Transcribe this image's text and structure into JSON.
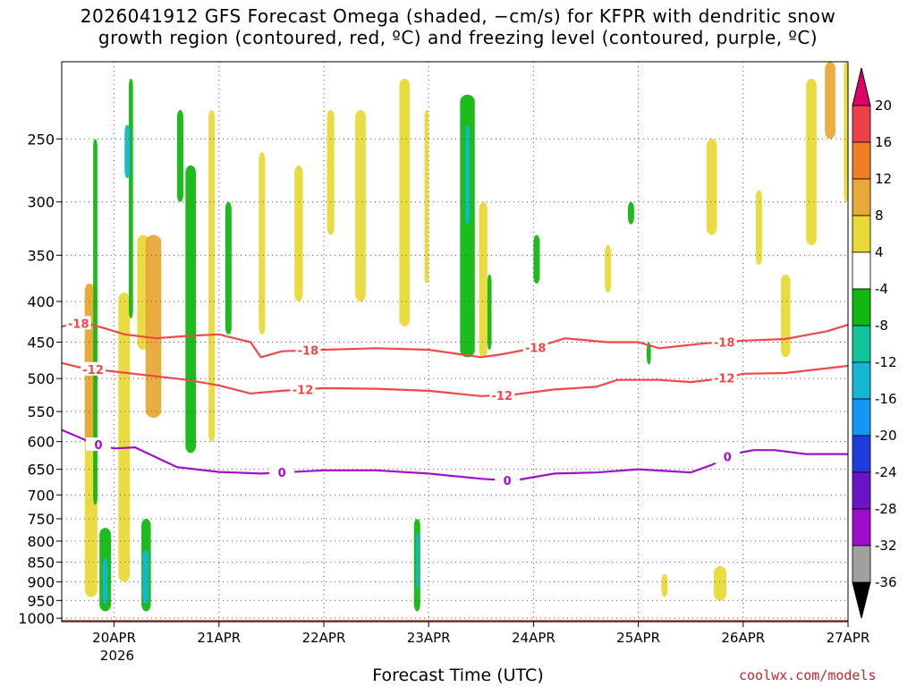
{
  "chart_data": {
    "type": "time-height cross section",
    "title_line1": "2026041912 GFS Forecast Omega (shaded, −cm/s) for KFPR with dendritic snow",
    "title_line2": "growth region (contoured, red, ºC) and freezing level (contoured, purple, ºC)",
    "xlabel": "Forecast Time (UTC)",
    "year_label": "2026",
    "credit": "coolwx.com/models",
    "x_ticks": [
      "20APR",
      "21APR",
      "22APR",
      "23APR",
      "24APR",
      "25APR",
      "26APR",
      "27APR"
    ],
    "x_range_days": [
      19.5,
      27.0
    ],
    "y_axis": "pressure (hPa)",
    "y_ticks": [
      250,
      300,
      350,
      400,
      450,
      500,
      550,
      600,
      650,
      700,
      750,
      800,
      850,
      900,
      950,
      1000
    ],
    "y_range": [
      200,
      1010
    ],
    "colorbar_levels": [
      20,
      16,
      12,
      8,
      4,
      -4,
      -8,
      -12,
      -16,
      -20,
      -24,
      -28,
      -32,
      -36
    ],
    "colorbar_colors": [
      "#e0006a",
      "#ee4048",
      "#f07e26",
      "#e9a937",
      "#e9d936",
      "#ffffff",
      "#10b810",
      "#0fc49a",
      "#14b6d2",
      "#1496f4",
      "#1e3cdc",
      "#6a14c8",
      "#a00ccc",
      "#a0a0a0",
      "#000000"
    ],
    "contours": [
      {
        "name": "-18",
        "color": "#f04848",
        "points": [
          [
            19.5,
            430
          ],
          [
            19.7,
            425
          ],
          [
            19.9,
            432
          ],
          [
            20.1,
            440
          ],
          [
            20.4,
            445
          ],
          [
            20.7,
            442
          ],
          [
            21.0,
            440
          ],
          [
            21.3,
            450
          ],
          [
            21.4,
            470
          ],
          [
            21.6,
            462
          ],
          [
            22.0,
            460
          ],
          [
            22.5,
            458
          ],
          [
            23.0,
            460
          ],
          [
            23.5,
            470
          ],
          [
            23.7,
            466
          ],
          [
            24.0,
            458
          ],
          [
            24.3,
            445
          ],
          [
            24.7,
            450
          ],
          [
            25.0,
            450
          ],
          [
            25.2,
            458
          ],
          [
            25.6,
            452
          ],
          [
            26.0,
            448
          ],
          [
            26.4,
            446
          ],
          [
            26.8,
            436
          ],
          [
            27.0,
            428
          ]
        ],
        "labels": [
          [
            19.66,
            "-18"
          ],
          [
            21.85,
            "-18"
          ],
          [
            24.02,
            "-18"
          ],
          [
            25.82,
            "-18"
          ]
        ]
      },
      {
        "name": "-12",
        "color": "#f04848",
        "points": [
          [
            19.5,
            478
          ],
          [
            19.7,
            485
          ],
          [
            20.0,
            490
          ],
          [
            20.3,
            495
          ],
          [
            20.7,
            502
          ],
          [
            21.0,
            510
          ],
          [
            21.3,
            522
          ],
          [
            21.6,
            518
          ],
          [
            22.0,
            514
          ],
          [
            22.5,
            515
          ],
          [
            23.0,
            518
          ],
          [
            23.5,
            526
          ],
          [
            23.8,
            524
          ],
          [
            24.2,
            516
          ],
          [
            24.6,
            512
          ],
          [
            24.8,
            502
          ],
          [
            25.2,
            502
          ],
          [
            25.5,
            505
          ],
          [
            25.8,
            500
          ],
          [
            26.0,
            493
          ],
          [
            26.4,
            492
          ],
          [
            26.7,
            487
          ],
          [
            27.0,
            482
          ]
        ],
        "labels": [
          [
            19.8,
            "-12"
          ],
          [
            21.8,
            "-12"
          ],
          [
            23.7,
            "-12"
          ],
          [
            25.82,
            "-12"
          ]
        ]
      },
      {
        "name": "0",
        "color": "#a010c8",
        "points": [
          [
            19.5,
            580
          ],
          [
            19.8,
            603
          ],
          [
            20.0,
            612
          ],
          [
            20.2,
            610
          ],
          [
            20.4,
            628
          ],
          [
            20.6,
            646
          ],
          [
            21.0,
            655
          ],
          [
            21.4,
            658
          ],
          [
            22.0,
            652
          ],
          [
            22.5,
            652
          ],
          [
            23.0,
            658
          ],
          [
            23.5,
            668
          ],
          [
            23.8,
            672
          ],
          [
            24.2,
            658
          ],
          [
            24.6,
            656
          ],
          [
            25.0,
            650
          ],
          [
            25.5,
            656
          ],
          [
            25.7,
            642
          ],
          [
            25.9,
            622
          ],
          [
            26.1,
            615
          ],
          [
            26.3,
            615
          ],
          [
            26.6,
            622
          ],
          [
            27.0,
            622
          ]
        ],
        "labels": [
          [
            19.85,
            "0"
          ],
          [
            21.6,
            "0"
          ],
          [
            23.75,
            "0"
          ],
          [
            25.85,
            "0"
          ]
        ]
      }
    ],
    "omega_patches": [
      {
        "x": [
          19.72,
          19.84
        ],
        "p": [
          380,
          940
        ],
        "v": 5
      },
      {
        "x": [
          19.72,
          19.8
        ],
        "p": [
          380,
          600
        ],
        "v": 8
      },
      {
        "x": [
          19.8,
          19.84
        ],
        "p": [
          250,
          720
        ],
        "v": -5
      },
      {
        "x": [
          19.86,
          19.97
        ],
        "p": [
          770,
          980
        ],
        "v": -5
      },
      {
        "x": [
          19.89,
          19.94
        ],
        "p": [
          840,
          960
        ],
        "v": -13
      },
      {
        "x": [
          20.04,
          20.15
        ],
        "p": [
          390,
          900
        ],
        "v": 5
      },
      {
        "x": [
          20.14,
          20.18
        ],
        "p": [
          210,
          420
        ],
        "v": -5
      },
      {
        "x": [
          20.1,
          20.15
        ],
        "p": [
          240,
          280
        ],
        "v": -12
      },
      {
        "x": [
          20.22,
          20.33
        ],
        "p": [
          330,
          460
        ],
        "v": 5
      },
      {
        "x": [
          20.3,
          20.45
        ],
        "p": [
          330,
          560
        ],
        "v": 10
      },
      {
        "x": [
          20.26,
          20.35
        ],
        "p": [
          750,
          980
        ],
        "v": -5
      },
      {
        "x": [
          20.27,
          20.33
        ],
        "p": [
          820,
          960
        ],
        "v": -12
      },
      {
        "x": [
          20.68,
          20.78
        ],
        "p": [
          270,
          620
        ],
        "v": -5
      },
      {
        "x": [
          20.6,
          20.66
        ],
        "p": [
          230,
          300
        ],
        "v": -5
      },
      {
        "x": [
          20.9,
          20.96
        ],
        "p": [
          230,
          600
        ],
        "v": 5
      },
      {
        "x": [
          21.06,
          21.12
        ],
        "p": [
          300,
          440
        ],
        "v": -5
      },
      {
        "x": [
          21.38,
          21.44
        ],
        "p": [
          260,
          440
        ],
        "v": 5
      },
      {
        "x": [
          21.72,
          21.8
        ],
        "p": [
          270,
          400
        ],
        "v": 5
      },
      {
        "x": [
          22.03,
          22.1
        ],
        "p": [
          230,
          330
        ],
        "v": 5
      },
      {
        "x": [
          22.3,
          22.4
        ],
        "p": [
          230,
          400
        ],
        "v": 5
      },
      {
        "x": [
          22.72,
          22.82
        ],
        "p": [
          210,
          430
        ],
        "v": 5
      },
      {
        "x": [
          22.86,
          22.92
        ],
        "p": [
          750,
          980
        ],
        "v": -5
      },
      {
        "x": [
          22.88,
          22.91
        ],
        "p": [
          780,
          920
        ],
        "v": -12
      },
      {
        "x": [
          22.96,
          23.0
        ],
        "p": [
          230,
          380
        ],
        "v": 5
      },
      {
        "x": [
          23.3,
          23.44
        ],
        "p": [
          220,
          470
        ],
        "v": -5
      },
      {
        "x": [
          23.35,
          23.39
        ],
        "p": [
          240,
          320
        ],
        "v": -12
      },
      {
        "x": [
          23.48,
          23.56
        ],
        "p": [
          300,
          470
        ],
        "v": 5
      },
      {
        "x": [
          23.56,
          23.6
        ],
        "p": [
          370,
          460
        ],
        "v": -5
      },
      {
        "x": [
          24.0,
          24.06
        ],
        "p": [
          330,
          380
        ],
        "v": -5
      },
      {
        "x": [
          24.68,
          24.74
        ],
        "p": [
          340,
          390
        ],
        "v": 5
      },
      {
        "x": [
          24.9,
          24.96
        ],
        "p": [
          300,
          320
        ],
        "v": -5
      },
      {
        "x": [
          25.08,
          25.12
        ],
        "p": [
          450,
          480
        ],
        "v": -5
      },
      {
        "x": [
          25.22,
          25.28
        ],
        "p": [
          880,
          940
        ],
        "v": 5
      },
      {
        "x": [
          25.65,
          25.75
        ],
        "p": [
          250,
          330
        ],
        "v": 5
      },
      {
        "x": [
          25.72,
          25.84
        ],
        "p": [
          860,
          950
        ],
        "v": 5
      },
      {
        "x": [
          26.12,
          26.18
        ],
        "p": [
          290,
          360
        ],
        "v": 5
      },
      {
        "x": [
          26.36,
          26.45
        ],
        "p": [
          370,
          470
        ],
        "v": 5
      },
      {
        "x": [
          26.6,
          26.7
        ],
        "p": [
          210,
          340
        ],
        "v": 5
      },
      {
        "x": [
          26.78,
          26.88
        ],
        "p": [
          200,
          250
        ],
        "v": 10
      },
      {
        "x": [
          26.96,
          27.0
        ],
        "p": [
          200,
          300
        ],
        "v": 5
      }
    ]
  }
}
